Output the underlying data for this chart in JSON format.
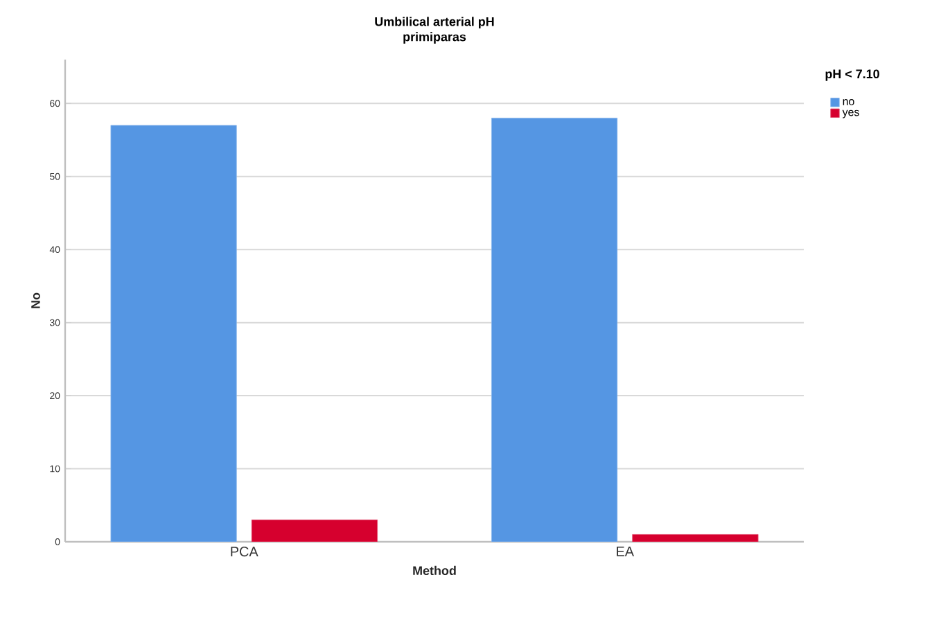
{
  "chart_data": {
    "type": "bar",
    "title": "Umbilical arterial pH",
    "subtitle": "primiparas",
    "xlabel": "Method",
    "ylabel": "No",
    "legend_title": "pH < 7.10",
    "categories": [
      "PCA",
      "EA"
    ],
    "series": [
      {
        "name": "no",
        "color": "#5596e3",
        "values": [
          57,
          58
        ]
      },
      {
        "name": "yes",
        "color": "#d6002e",
        "values": [
          3,
          1
        ]
      }
    ],
    "ylim": [
      0,
      66
    ],
    "yticks": [
      0,
      10,
      20,
      30,
      40,
      50,
      60
    ],
    "grid": "y",
    "legend": "top right"
  }
}
